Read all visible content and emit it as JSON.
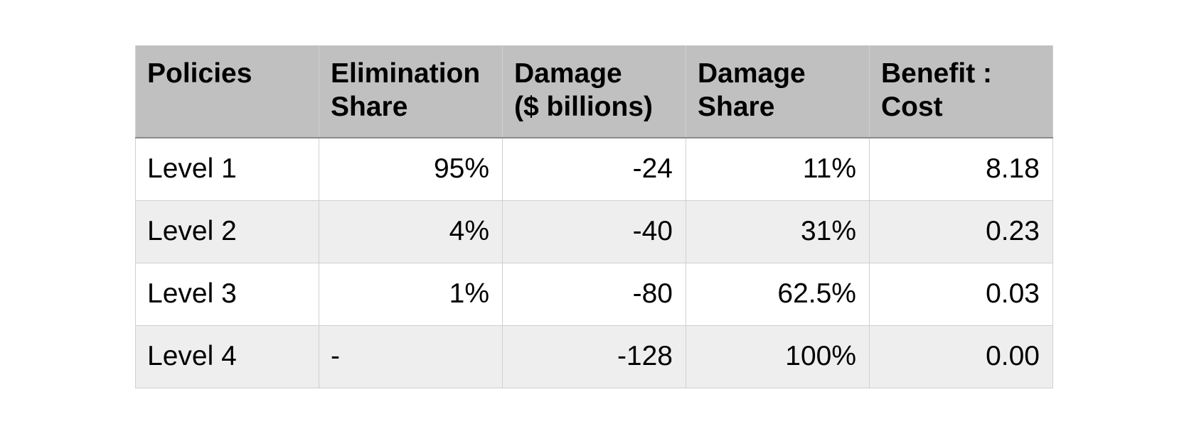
{
  "table": {
    "headers": [
      [
        "Policies"
      ],
      [
        "Elimination",
        "Share"
      ],
      [
        "Damage",
        "($ billions)"
      ],
      [
        "Damage",
        "Share"
      ],
      [
        "Benefit :",
        "Cost"
      ]
    ],
    "rows": [
      [
        "Level 1",
        "95%",
        "-24",
        "11%",
        "8.18"
      ],
      [
        "Level 2",
        "4%",
        "-40",
        "31%",
        "0.23"
      ],
      [
        "Level 3",
        "1%",
        "-80",
        "62.5%",
        "0.03"
      ],
      [
        "Level 4",
        "-",
        "-128",
        "100%",
        "0.00"
      ]
    ]
  }
}
